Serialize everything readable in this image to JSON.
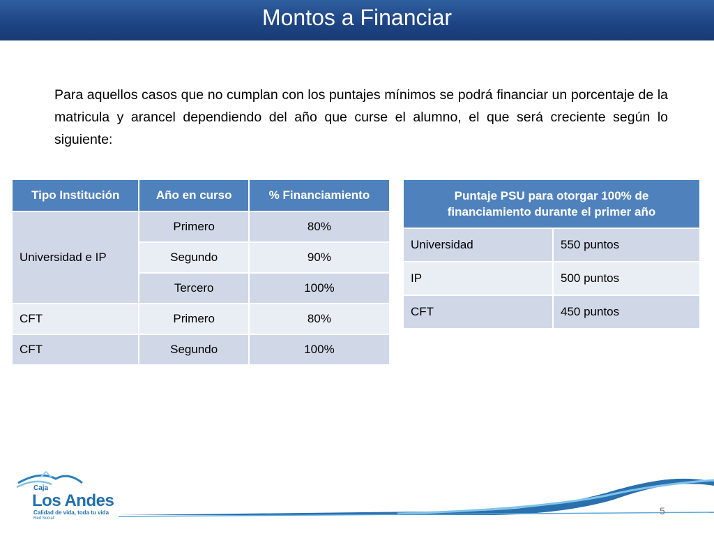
{
  "slide": {
    "title": "Montos a Financiar",
    "intro": "Para aquellos casos que no cumplan con los  puntajes mínimos se podrá financiar un porcentaje de la matricula y arancel dependiendo del año que curse el alumno, el que será creciente según lo siguiente:",
    "page_number": "5"
  },
  "financing_table": {
    "headers": [
      "Tipo Institución",
      "Año en curso",
      "% Financiamiento"
    ],
    "group1_type": "Universidad e IP",
    "rows": [
      {
        "year": "Primero",
        "percent": "80%"
      },
      {
        "year": "Segundo",
        "percent": "90%"
      },
      {
        "year": "Tercero",
        "percent": "100%"
      },
      {
        "type": "CFT",
        "year": "Primero",
        "percent": "80%"
      },
      {
        "type": "CFT",
        "year": "Segundo",
        "percent": "100%"
      }
    ]
  },
  "psu_table": {
    "header": "Puntaje PSU para otorgar 100% de financiamiento durante el primer año",
    "rows": [
      {
        "institution": "Universidad",
        "points": "550 puntos"
      },
      {
        "institution": "IP",
        "points": "500 puntos"
      },
      {
        "institution": "CFT",
        "points": "450 puntos"
      }
    ]
  },
  "logo": {
    "caja": "Caja",
    "name": "Los Andes",
    "tagline": "Calidad de vida, toda tu vida",
    "network": "Red Social"
  },
  "colors": {
    "title_bar": "#1f4585",
    "table_header": "#4f81bd",
    "row_dark": "#d0d8e8",
    "row_light": "#e9edf4"
  }
}
